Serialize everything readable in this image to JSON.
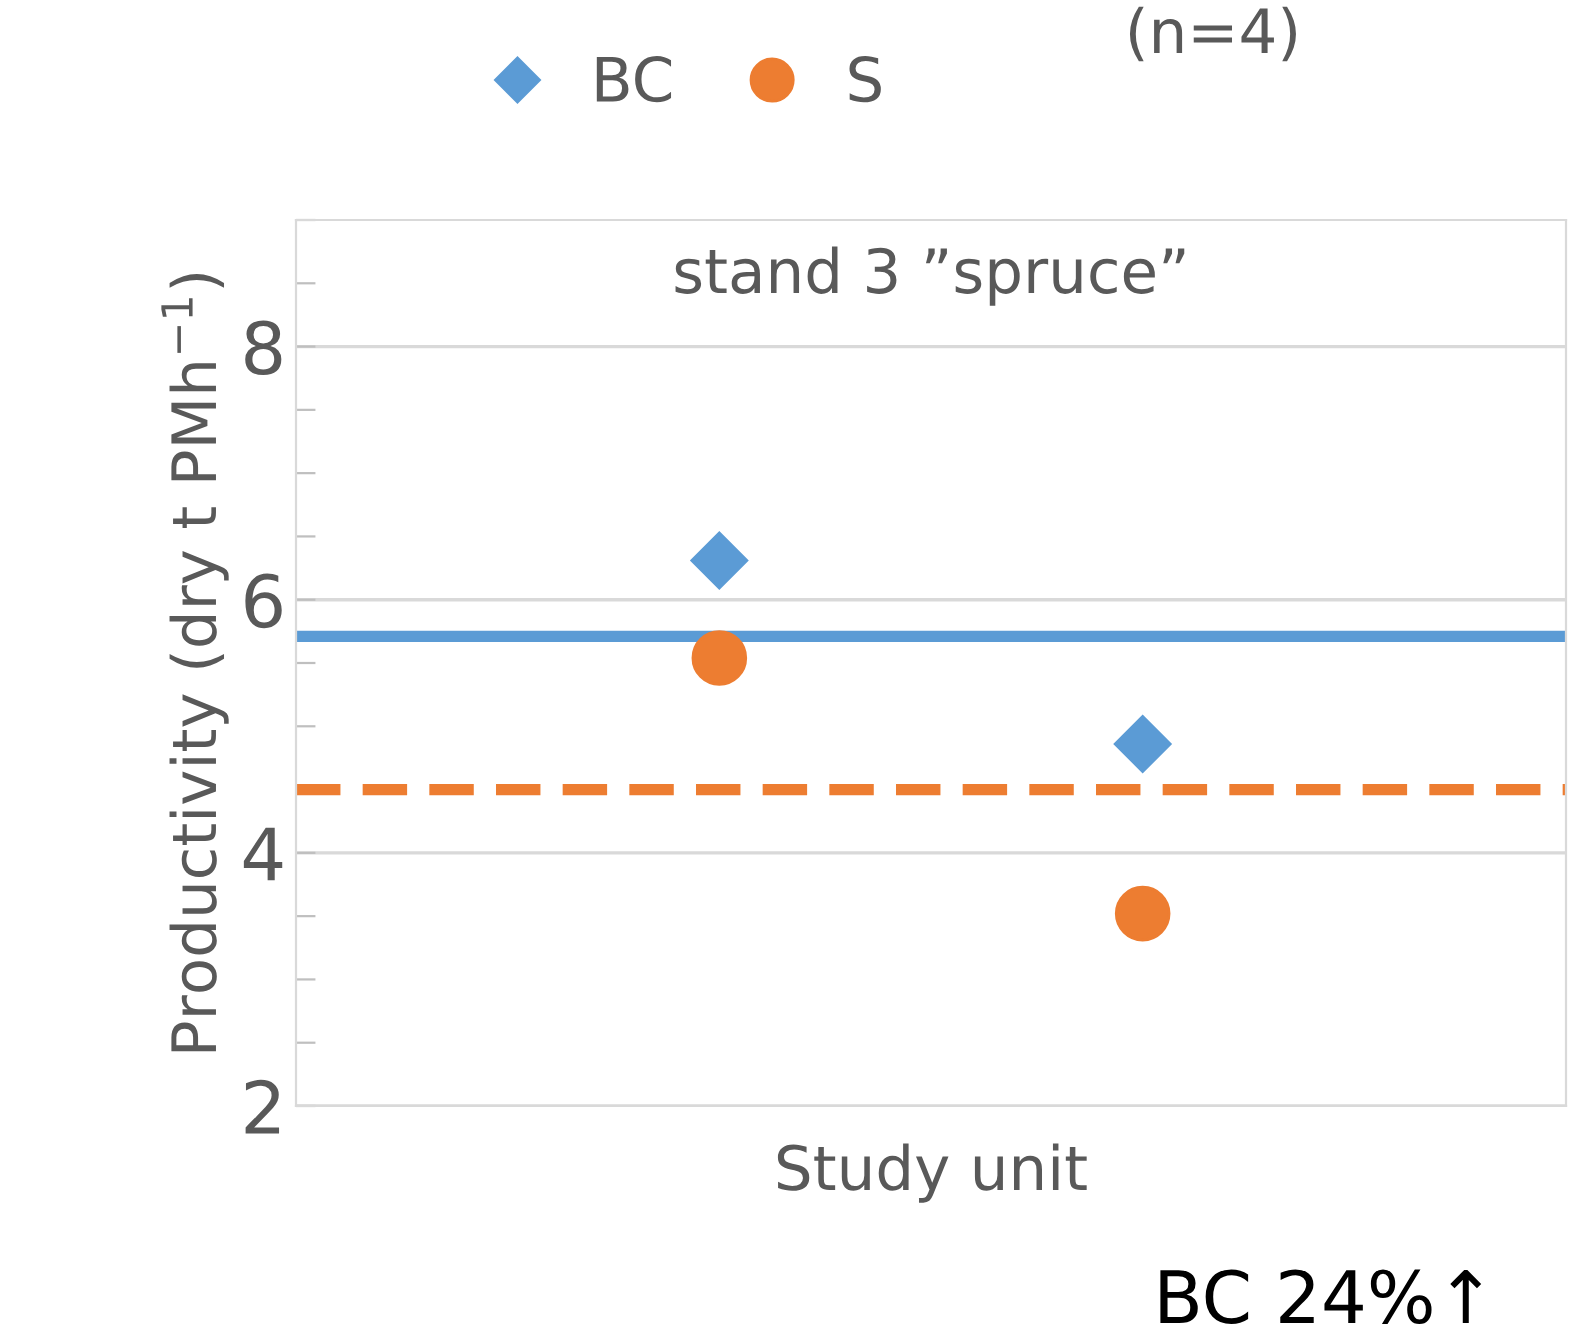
{
  "chart_data": {
    "type": "scatter",
    "title": "stand 3 ”spruce”",
    "xlabel": "Study unit",
    "ylabel": "Productivity (dry t PMh$^{−1}$)",
    "categories": [
      null,
      null
    ],
    "series": [
      {
        "name": "BC",
        "color": "#5b9bd5",
        "marker": "diamond",
        "values": [
          6.31,
          4.86
        ]
      },
      {
        "name": "S",
        "color": "#ed7d31",
        "marker": "circle",
        "values": [
          5.54,
          3.52
        ]
      }
    ],
    "ref_lines": [
      {
        "axis": "y",
        "value": 5.71,
        "color": "#5b9bd5",
        "line_style": "solid"
      },
      {
        "axis": "y",
        "value": 4.5,
        "color": "#ed7d31",
        "line_style": "dashed"
      }
    ],
    "ylim": [
      2,
      9
    ],
    "yticks": [
      2,
      {
        "value": 2.5,
        "label": null
      },
      {
        "value": 3,
        "label": null
      },
      {
        "value": 3.5,
        "label": null
      },
      4,
      {
        "value": 4.5,
        "label": null
      },
      {
        "value": 5,
        "label": null
      },
      {
        "value": 5.5,
        "label": null
      },
      6,
      {
        "value": 6.5,
        "label": null
      },
      {
        "value": 7,
        "label": null
      },
      {
        "value": 7.5,
        "label": null
      },
      8,
      {
        "value": 8.5,
        "label": null
      },
      {
        "value": 9,
        "label": null
      }
    ],
    "grid": "y",
    "legend": "top",
    "annotations": [
      "(n=4)",
      "BC 24%↑"
    ]
  }
}
